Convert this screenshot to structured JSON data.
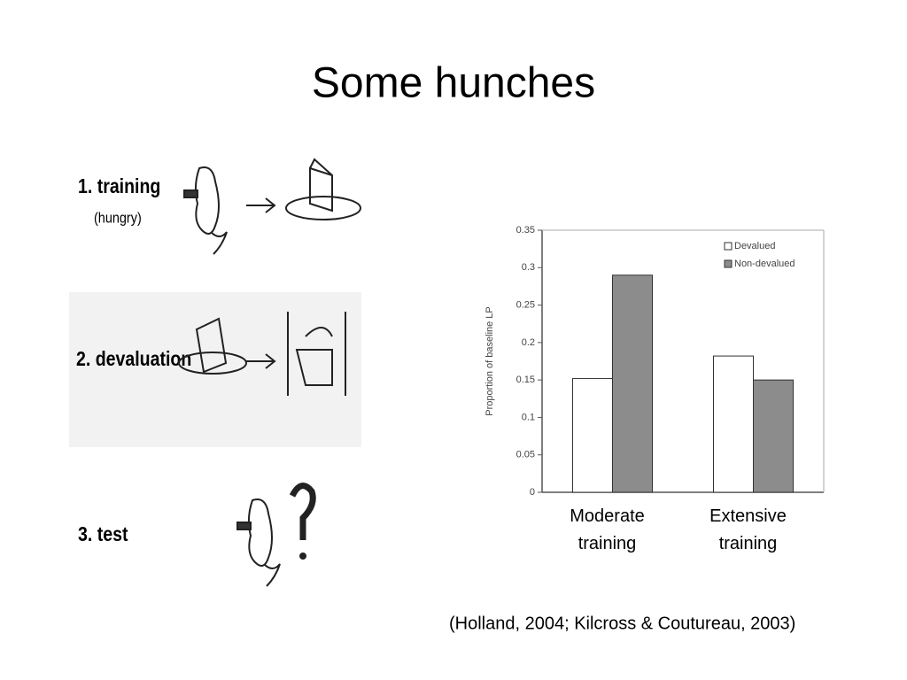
{
  "slide_title": "Some hunches",
  "steps": [
    {
      "label": "1. training",
      "note": "(hungry)"
    },
    {
      "label": "2. devaluation"
    },
    {
      "label": "3. test"
    }
  ],
  "citation": "(Holland, 2004; Kilcross & Coutureau, 2003)",
  "chart_data": {
    "type": "bar",
    "y_label": "Proportion of baseline LP",
    "categories": [
      "Moderate training",
      "Extensive training"
    ],
    "series": [
      {
        "name": "Devalued",
        "color": "#ffffff",
        "values": [
          0.152,
          0.182
        ]
      },
      {
        "name": "Non-devalued",
        "color": "#8c8c8c",
        "values": [
          0.29,
          0.15
        ]
      }
    ],
    "ylim": [
      0,
      0.35
    ],
    "yticks": [
      0,
      0.05,
      0.1,
      0.15,
      0.2,
      0.25,
      0.3,
      0.35
    ],
    "legend": "top-right"
  }
}
